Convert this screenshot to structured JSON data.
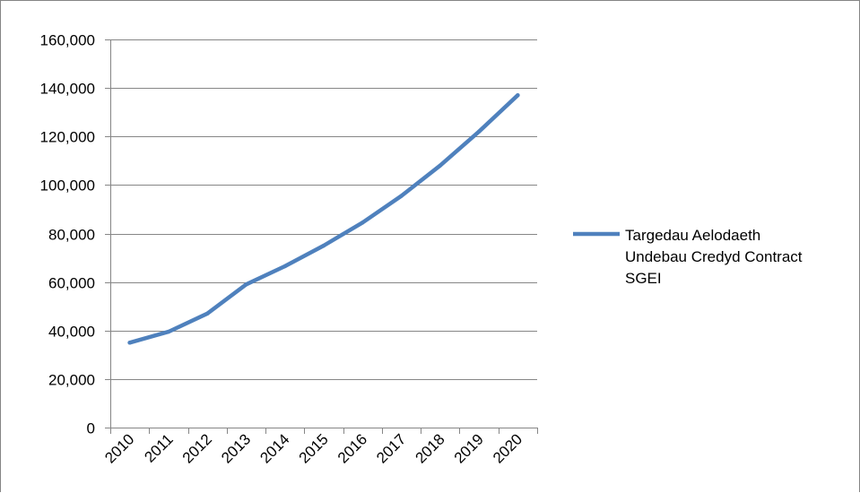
{
  "chart_data": {
    "type": "line",
    "title": "",
    "xlabel": "",
    "ylabel": "",
    "categories": [
      "2010",
      "2011",
      "2012",
      "2013",
      "2014",
      "2015",
      "2016",
      "2017",
      "2018",
      "2019",
      "2020"
    ],
    "series": [
      {
        "name_lines": [
          "Targedau Aelodaeth",
          "Undebau Credyd Contract",
          "SGEI"
        ],
        "values": [
          35000,
          39500,
          47000,
          59000,
          66500,
          75000,
          84500,
          95500,
          108000,
          122000,
          137000
        ],
        "color": "#4f81bd"
      }
    ],
    "ylim": [
      0,
      160000
    ],
    "yticks": [
      "0",
      "20,000",
      "40,000",
      "60,000",
      "80,000",
      "100,000",
      "120,000",
      "140,000",
      "160,000"
    ],
    "grid": true,
    "legend_position": "right"
  }
}
